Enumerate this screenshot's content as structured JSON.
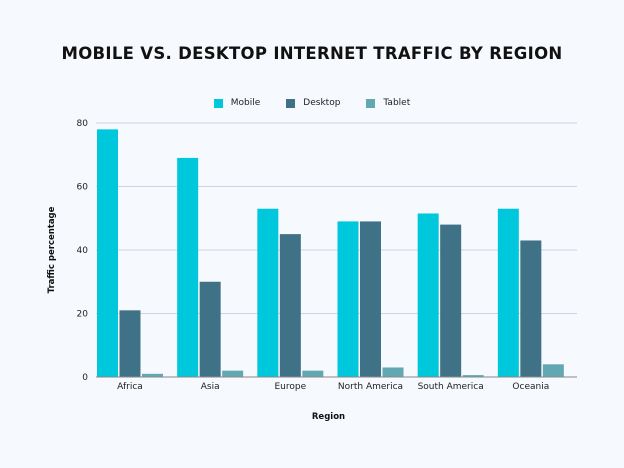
{
  "chart_data": {
    "type": "bar",
    "title": "MOBILE VS. DESKTOP INTERNET TRAFFIC BY REGION",
    "xlabel": "Region",
    "ylabel": "Traffic percentage",
    "ylim": [
      0,
      80
    ],
    "yticks": [
      0,
      20,
      40,
      60,
      80
    ],
    "grid": true,
    "legend_position": "top-center",
    "categories": [
      "Africa",
      "Asia",
      "Europe",
      "North America",
      "South America",
      "Oceania"
    ],
    "series": [
      {
        "name": "Mobile",
        "color": "#00c8dc",
        "values": [
          78,
          69,
          53,
          49,
          51.5,
          53
        ]
      },
      {
        "name": "Desktop",
        "color": "#3f7286",
        "values": [
          21,
          30,
          45,
          49,
          48,
          43
        ]
      },
      {
        "name": "Tablet",
        "color": "#62a8b2",
        "values": [
          1,
          2,
          2,
          3,
          0.6,
          4
        ]
      }
    ]
  }
}
